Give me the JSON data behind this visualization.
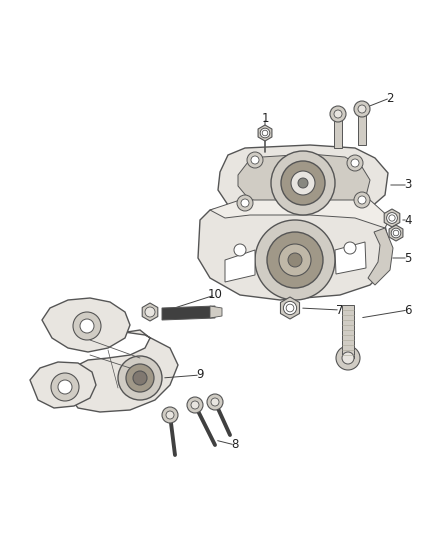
{
  "background_color": "#ffffff",
  "figure_width": 4.38,
  "figure_height": 5.33,
  "dpi": 100,
  "line_color": "#555555",
  "light_fill": "#e8e5e0",
  "mid_fill": "#d0ccc4",
  "dark_fill": "#a09888",
  "very_dark": "#404040",
  "label_color": "#222222",
  "label_fontsize": 8.5,
  "leader_lw": 0.7,
  "part_lw": 1.0
}
